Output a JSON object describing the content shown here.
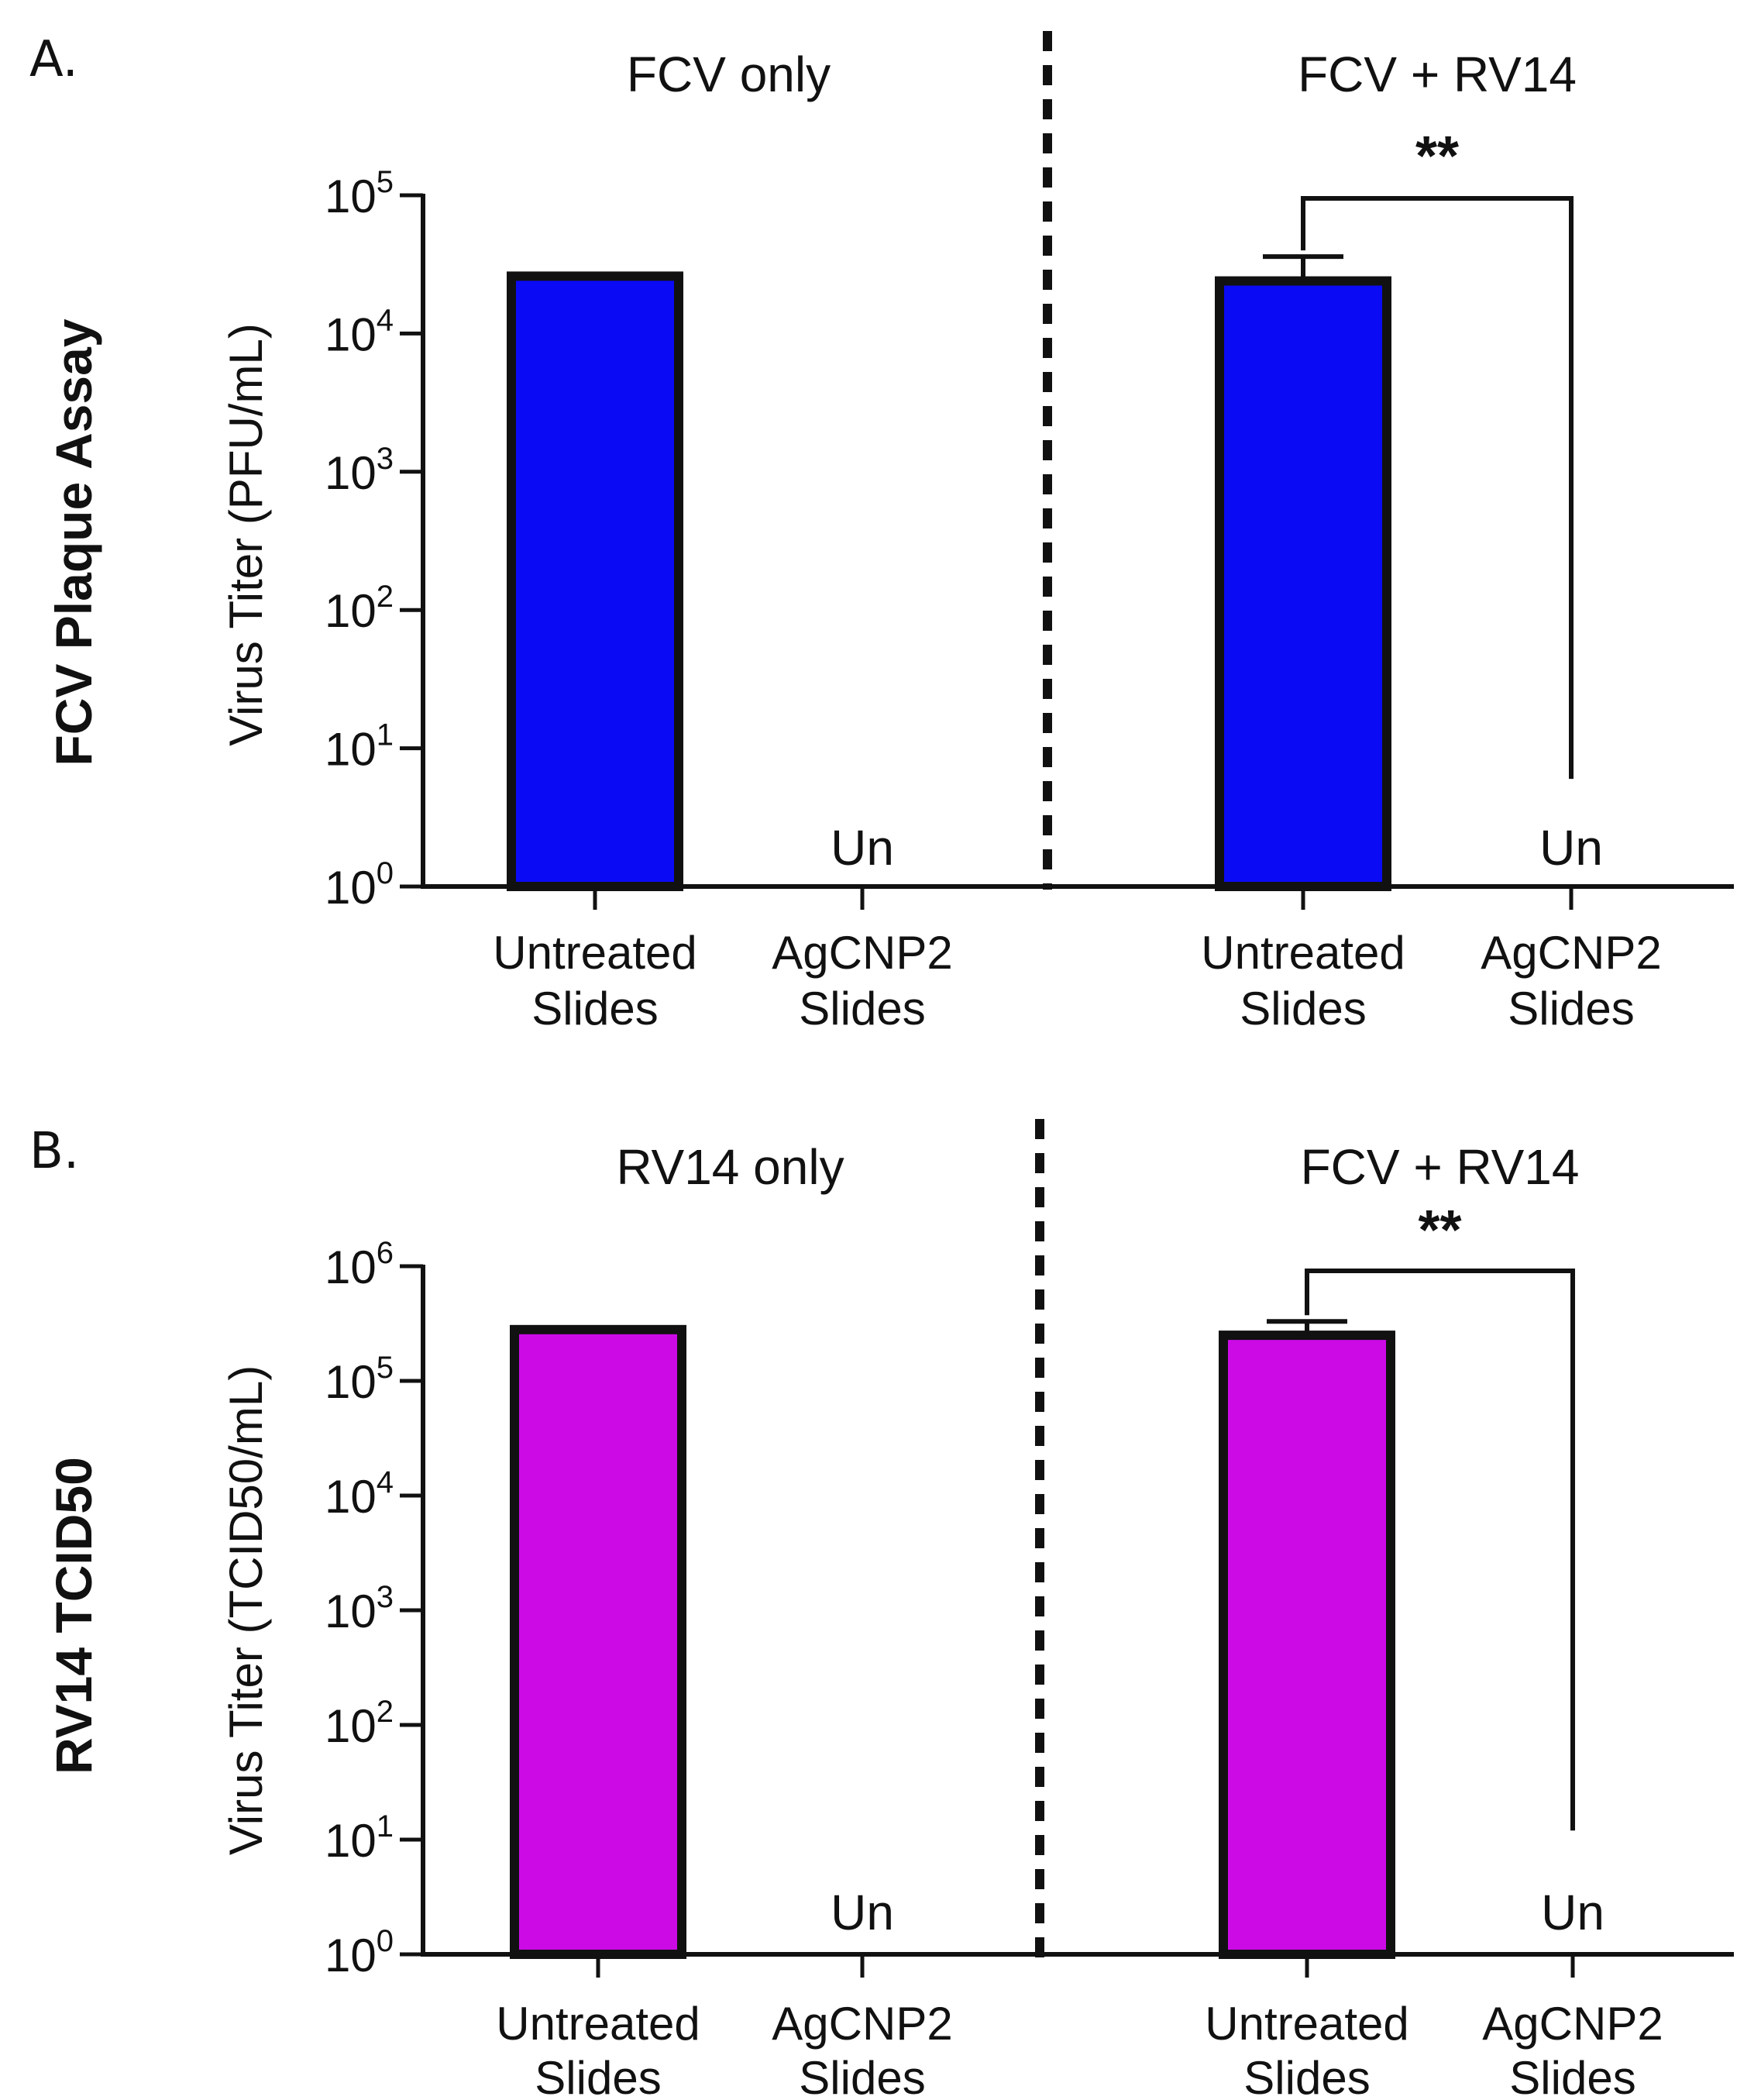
{
  "colors": {
    "fcv_bar": "#0A0AF5",
    "rv14_bar": "#CC0AE6",
    "ink": "#111111"
  },
  "chart_data": [
    {
      "type": "bar",
      "panel": "A.",
      "row_title": "FCV Plaque Assay",
      "ylabel": "Virus Titer (PFU/mL)",
      "yscale": "log10",
      "ylim": [
        1,
        100000
      ],
      "ytick_exponents": [
        0,
        1,
        2,
        3,
        4,
        5
      ],
      "tick_base": "10",
      "groups": [
        {
          "title": "FCV only",
          "categories": [
            {
              "line1": "Untreated",
              "line2": "Slides",
              "value": 26000,
              "error": null,
              "undetected": false
            },
            {
              "line1": "AgCNP2",
              "line2": "Slides",
              "value": null,
              "error": null,
              "undetected": true,
              "undetected_label": "Un"
            }
          ],
          "significance": null
        },
        {
          "title": "FCV + RV14",
          "categories": [
            {
              "line1": "Untreated",
              "line2": "Slides",
              "value": 24000,
              "error": 36000,
              "undetected": false
            },
            {
              "line1": "AgCNP2",
              "line2": "Slides",
              "value": null,
              "error": null,
              "undetected": true,
              "undetected_label": "Un"
            }
          ],
          "significance": {
            "label": "**",
            "bracket_right_bottom_value": 6
          }
        }
      ]
    },
    {
      "type": "bar",
      "panel": "B.",
      "row_title": "RV14 TCID50",
      "ylabel": "Virus Titer (TCID50/mL)",
      "yscale": "log10",
      "ylim": [
        1,
        1000000
      ],
      "ytick_exponents": [
        0,
        1,
        2,
        3,
        4,
        5,
        6
      ],
      "tick_base": "10",
      "groups": [
        {
          "title": "RV14 only",
          "categories": [
            {
              "line1": "Untreated",
              "line2": "Slides",
              "value": 280000,
              "error": null,
              "undetected": false
            },
            {
              "line1": "AgCNP2",
              "line2": "Slides",
              "value": null,
              "error": null,
              "undetected": true,
              "undetected_label": "Un"
            }
          ],
          "significance": null
        },
        {
          "title": "FCV + RV14",
          "categories": [
            {
              "line1": "Untreated",
              "line2": "Slides",
              "value": 250000,
              "error": 330000,
              "undetected": false
            },
            {
              "line1": "AgCNP2",
              "line2": "Slides",
              "value": null,
              "error": null,
              "undetected": true,
              "undetected_label": "Un"
            }
          ],
          "significance": {
            "label": "**",
            "bracket_right_bottom_value": 12
          }
        }
      ]
    }
  ]
}
